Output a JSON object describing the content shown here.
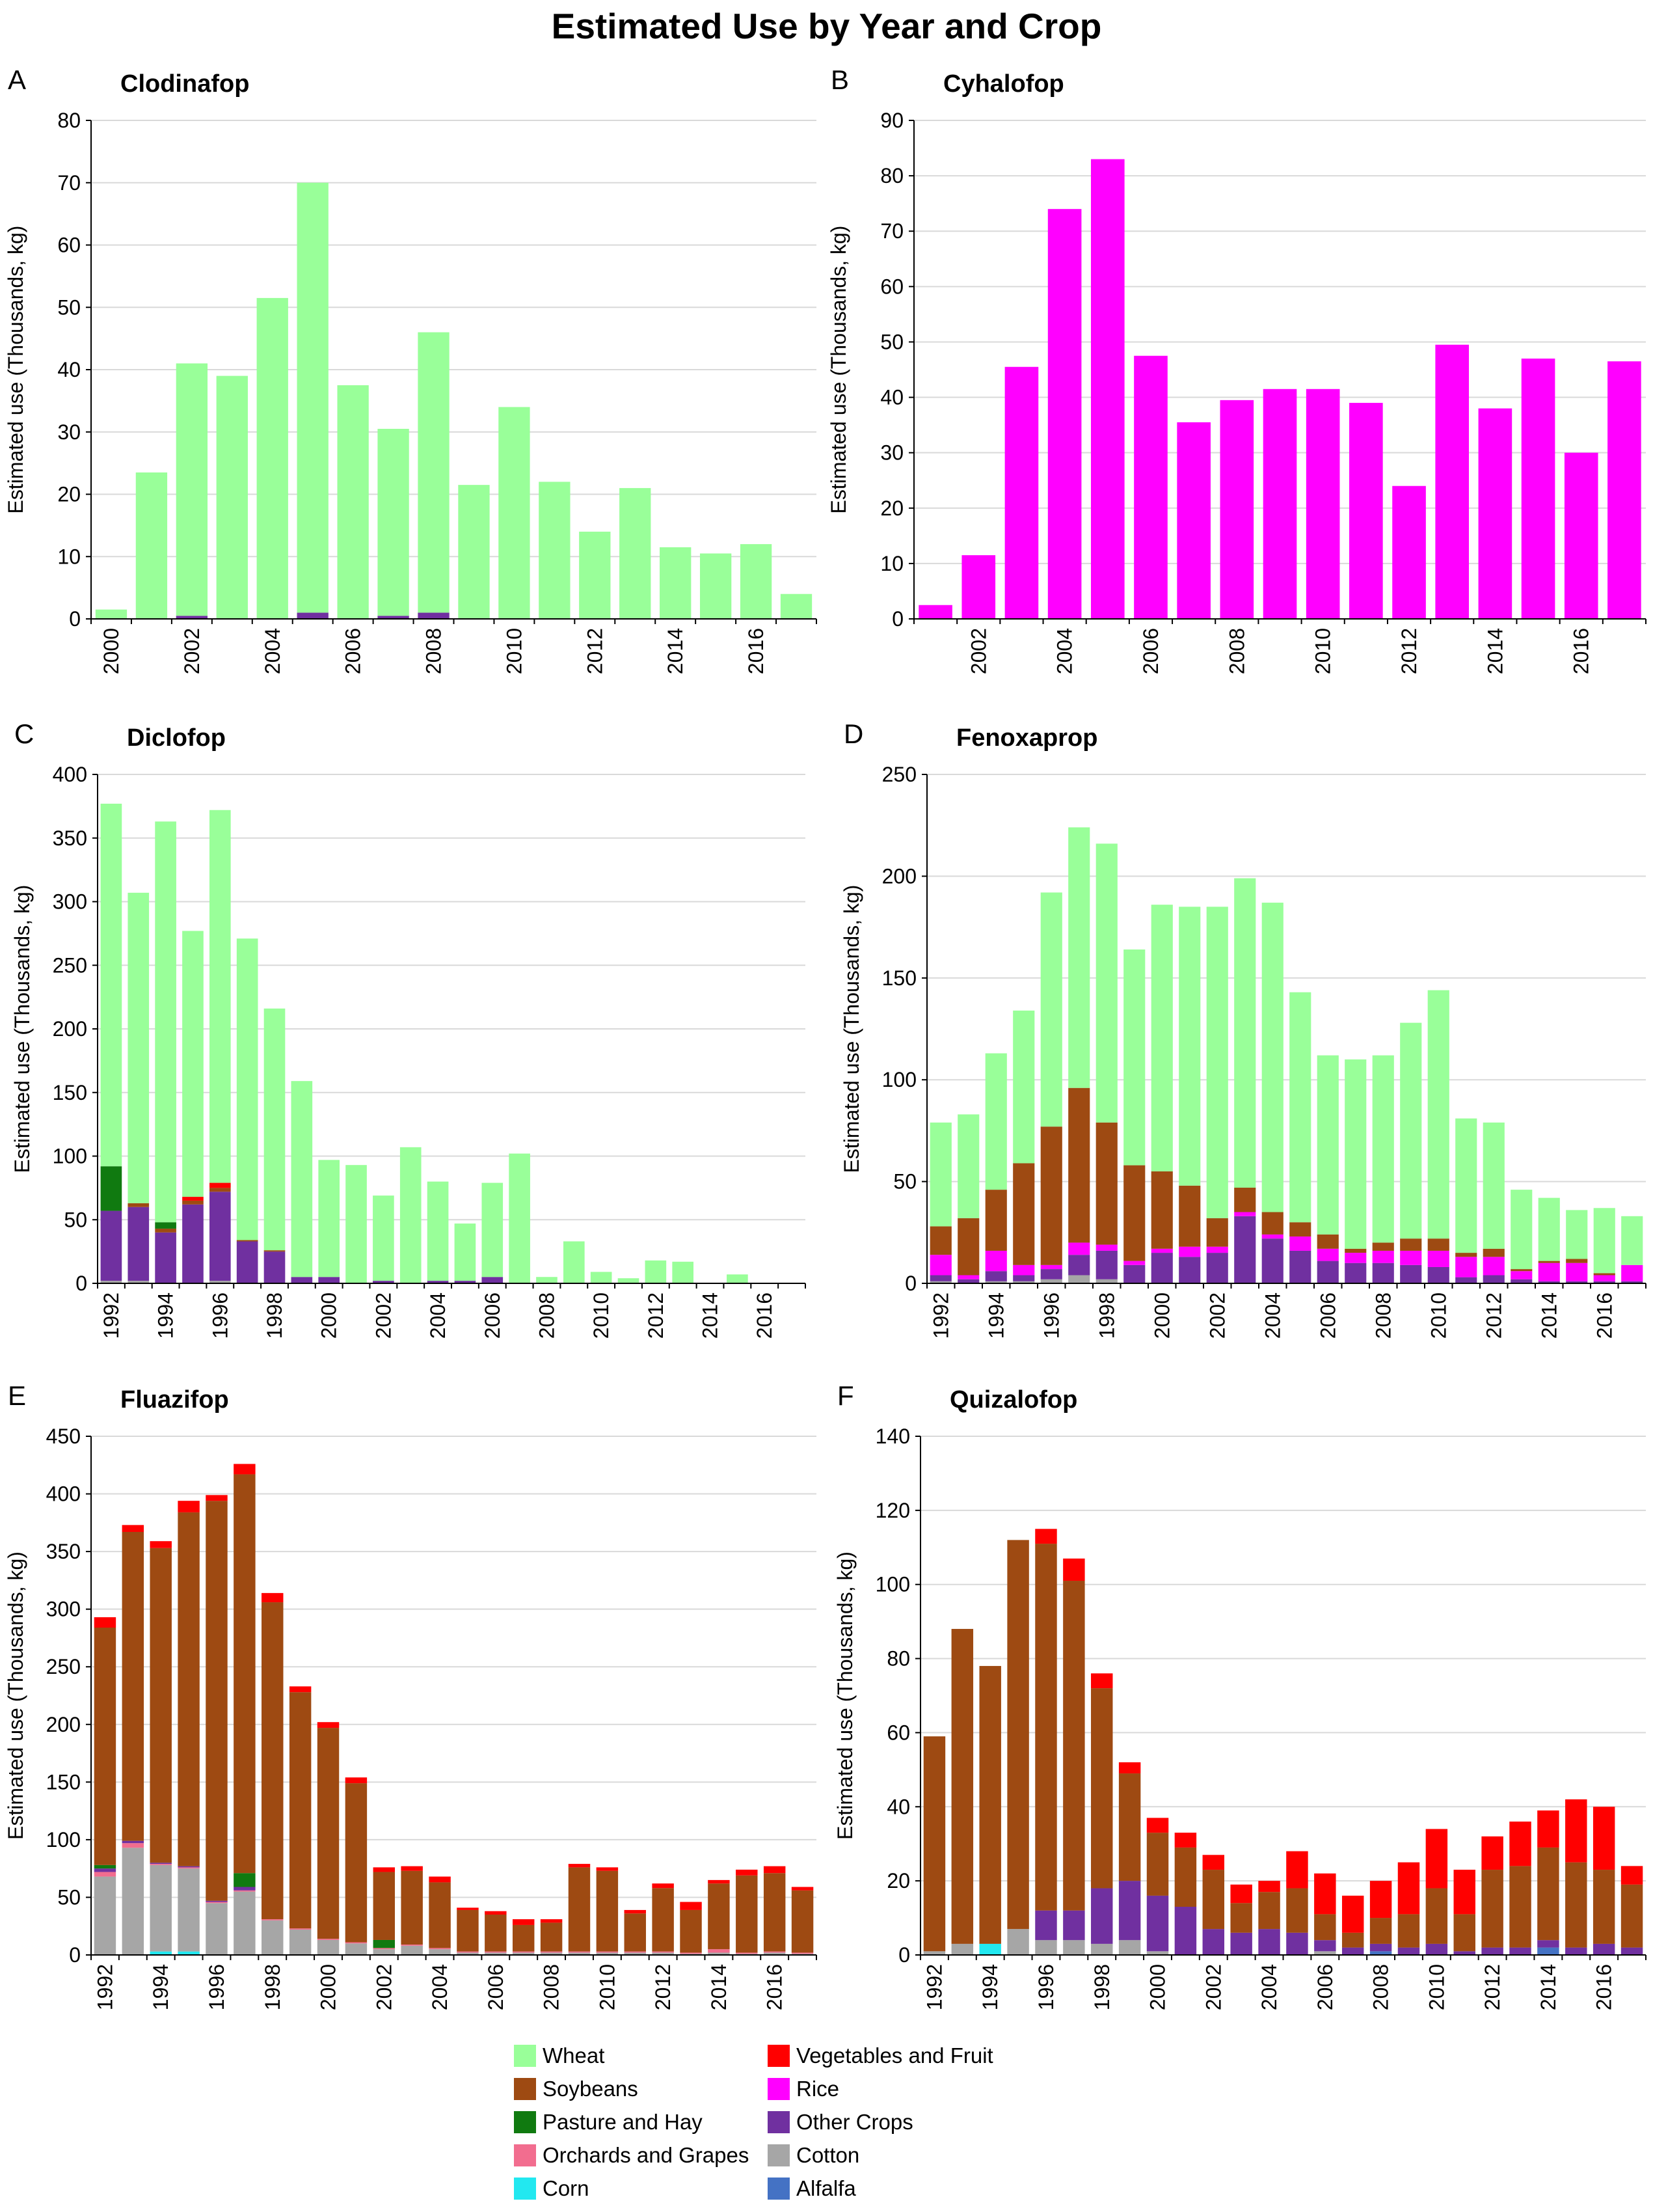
{
  "title": "Estimated Use by Year and Crop",
  "colors": {
    "wheat": "#99FF99",
    "soybeans": "#9E4A12",
    "pasture": "#107A10",
    "orchards": "#F26D8F",
    "corn": "#22E8F0",
    "veg": "#FF0000",
    "rice": "#FF00FF",
    "other": "#7030A0",
    "cotton": "#A6A6A6",
    "alfalfa": "#4472C4"
  },
  "legend": [
    {
      "key": "wheat",
      "label": "Wheat"
    },
    {
      "key": "soybeans",
      "label": "Soybeans"
    },
    {
      "key": "pasture",
      "label": "Pasture and Hay"
    },
    {
      "key": "orchards",
      "label": "Orchards and Grapes"
    },
    {
      "key": "corn",
      "label": "Corn"
    },
    {
      "key": "veg",
      "label": "Vegetables and Fruit"
    },
    {
      "key": "rice",
      "label": "Rice"
    },
    {
      "key": "other",
      "label": "Other Crops"
    },
    {
      "key": "cotton",
      "label": "Cotton"
    },
    {
      "key": "alfalfa",
      "label": "Alfalfa"
    }
  ],
  "chart_data": [
    {
      "panel": "A",
      "title": "Clodinafop",
      "type": "bar",
      "stacked": true,
      "ylabel": "Estimated use (Thousands, kg)",
      "ylim": [
        0,
        80
      ],
      "yticks": [
        0,
        10,
        20,
        30,
        40,
        50,
        60,
        70,
        80
      ],
      "x": [
        2000,
        2001,
        2002,
        2003,
        2004,
        2005,
        2006,
        2007,
        2008,
        2009,
        2010,
        2011,
        2012,
        2013,
        2014,
        2015,
        2016,
        2017
      ],
      "xticks": [
        "2000",
        "2002",
        "2004",
        "2006",
        "2008",
        "2010",
        "2012",
        "2014",
        "2016"
      ],
      "series": [
        {
          "key": "other",
          "name": "Other Crops",
          "values": [
            0,
            0,
            0.5,
            0,
            0,
            1,
            0,
            0.5,
            1,
            0,
            0,
            0,
            0,
            0,
            0,
            0,
            0,
            0
          ]
        },
        {
          "key": "wheat",
          "name": "Wheat",
          "values": [
            1.5,
            23.5,
            40.5,
            39,
            51.5,
            69,
            37.5,
            30,
            45,
            21.5,
            34,
            22,
            14,
            21,
            11.5,
            10.5,
            12,
            4
          ]
        }
      ]
    },
    {
      "panel": "B",
      "title": "Cyhalofop",
      "type": "bar",
      "stacked": true,
      "ylabel": "Estimated use (Thousands, kg)",
      "ylim": [
        0,
        90
      ],
      "yticks": [
        0,
        10,
        20,
        30,
        40,
        50,
        60,
        70,
        80,
        90
      ],
      "x": [
        2001,
        2002,
        2003,
        2004,
        2005,
        2006,
        2007,
        2008,
        2009,
        2010,
        2011,
        2012,
        2013,
        2014,
        2015,
        2016,
        2017
      ],
      "xticks": [
        "2002",
        "2004",
        "2006",
        "2008",
        "2010",
        "2012",
        "2014",
        "2016"
      ],
      "series": [
        {
          "key": "rice",
          "name": "Rice",
          "values": [
            2.5,
            11.5,
            45.5,
            74,
            83,
            47.5,
            35.5,
            39.5,
            41.5,
            41.5,
            39,
            24,
            49.5,
            38,
            47,
            30,
            46.5
          ]
        }
      ]
    },
    {
      "panel": "C",
      "title": "Diclofop",
      "type": "bar",
      "stacked": true,
      "ylabel": "Estimated use (Thousands, kg)",
      "ylim": [
        0,
        400
      ],
      "yticks": [
        0,
        50,
        100,
        150,
        200,
        250,
        300,
        350,
        400
      ],
      "x": [
        1992,
        1993,
        1994,
        1995,
        1996,
        1997,
        1998,
        1999,
        2000,
        2001,
        2002,
        2003,
        2004,
        2005,
        2006,
        2007,
        2008,
        2009,
        2010,
        2011,
        2012,
        2013,
        2014,
        2015,
        2016,
        2017
      ],
      "xticks": [
        "1992",
        "1994",
        "1996",
        "1998",
        "2000",
        "2002",
        "2004",
        "2006",
        "2008",
        "2010",
        "2012",
        "2014",
        "2016"
      ],
      "series": [
        {
          "key": "cotton",
          "name": "Cotton",
          "values": [
            2,
            2,
            0,
            0,
            2,
            0,
            0,
            0,
            0,
            0,
            0,
            0,
            0,
            0,
            0,
            0,
            0,
            0,
            0,
            0,
            0,
            0,
            0,
            0,
            0,
            0
          ]
        },
        {
          "key": "other",
          "name": "Other Crops",
          "values": [
            55,
            58,
            40,
            62,
            70,
            33,
            25,
            5,
            5,
            0,
            2,
            0,
            2,
            2,
            5,
            0,
            0,
            0,
            0,
            0,
            0,
            0,
            0,
            0,
            0,
            0
          ]
        },
        {
          "key": "soybeans",
          "name": "Soybeans",
          "values": [
            0,
            3,
            3,
            3,
            3,
            1,
            1,
            0,
            0,
            0,
            0,
            0,
            0,
            0,
            0,
            0,
            0,
            0,
            0,
            0,
            0,
            0,
            0,
            0,
            0,
            0
          ]
        },
        {
          "key": "pasture",
          "name": "Pasture and Hay",
          "values": [
            35,
            0,
            5,
            0,
            0,
            0,
            0,
            0,
            0,
            0,
            0,
            0,
            0,
            0,
            0,
            0,
            0,
            0,
            0,
            0,
            0,
            0,
            0,
            0,
            0,
            0
          ]
        },
        {
          "key": "veg",
          "name": "Vegetables and Fruit",
          "values": [
            0,
            0,
            0,
            3,
            4,
            0,
            0,
            0,
            0,
            0,
            0,
            0,
            0,
            0,
            0,
            0,
            0,
            0,
            0,
            0,
            0,
            0,
            0,
            0,
            0,
            0
          ]
        },
        {
          "key": "wheat",
          "name": "Wheat",
          "values": [
            285,
            244,
            315,
            209,
            293,
            237,
            190,
            154,
            92,
            93,
            67,
            107,
            78,
            45,
            74,
            102,
            5,
            33,
            9,
            4,
            18,
            17,
            0,
            7,
            0,
            0
          ]
        }
      ]
    },
    {
      "panel": "D",
      "title": "Fenoxaprop",
      "type": "bar",
      "stacked": true,
      "ylabel": "Estimated use (Thousands, kg)",
      "ylim": [
        0,
        250
      ],
      "yticks": [
        0,
        50,
        100,
        150,
        200,
        250
      ],
      "x": [
        1992,
        1993,
        1994,
        1995,
        1996,
        1997,
        1998,
        1999,
        2000,
        2001,
        2002,
        2003,
        2004,
        2005,
        2006,
        2007,
        2008,
        2009,
        2010,
        2011,
        2012,
        2013,
        2014,
        2015,
        2016,
        2017
      ],
      "xticks": [
        "1992",
        "1994",
        "1996",
        "1998",
        "2000",
        "2002",
        "2004",
        "2006",
        "2008",
        "2010",
        "2012",
        "2014",
        "2016"
      ],
      "series": [
        {
          "key": "cotton",
          "name": "Cotton",
          "values": [
            1,
            0,
            1,
            1,
            2,
            4,
            2,
            0,
            0,
            0,
            0,
            0,
            0,
            0,
            0,
            0,
            0,
            0,
            0,
            0,
            0,
            0,
            0,
            0,
            0,
            0
          ]
        },
        {
          "key": "other",
          "name": "Other Crops",
          "values": [
            3,
            2,
            5,
            3,
            5,
            10,
            14,
            9,
            15,
            13,
            15,
            33,
            22,
            16,
            11,
            10,
            10,
            9,
            8,
            3,
            4,
            2,
            1,
            1,
            1,
            1
          ]
        },
        {
          "key": "rice",
          "name": "Rice",
          "values": [
            10,
            2,
            10,
            5,
            2,
            6,
            3,
            2,
            2,
            5,
            3,
            2,
            2,
            7,
            6,
            5,
            6,
            7,
            8,
            10,
            9,
            4,
            9,
            9,
            3,
            8
          ]
        },
        {
          "key": "soybeans",
          "name": "Soybeans",
          "values": [
            14,
            28,
            30,
            50,
            68,
            76,
            60,
            47,
            38,
            30,
            14,
            12,
            11,
            7,
            7,
            2,
            4,
            6,
            6,
            2,
            4,
            1,
            1,
            2,
            1,
            0
          ]
        },
        {
          "key": "wheat",
          "name": "Wheat",
          "values": [
            51,
            51,
            67,
            75,
            115,
            128,
            137,
            106,
            131,
            137,
            153,
            152,
            152,
            113,
            88,
            93,
            92,
            106,
            122,
            66,
            62,
            39,
            31,
            24,
            32,
            24
          ]
        }
      ]
    },
    {
      "panel": "E",
      "title": "Fluazifop",
      "type": "bar",
      "stacked": true,
      "ylabel": "Estimated use (Thousands, kg)",
      "ylim": [
        0,
        450
      ],
      "yticks": [
        0,
        50,
        100,
        150,
        200,
        250,
        300,
        350,
        400,
        450
      ],
      "x": [
        1992,
        1993,
        1994,
        1995,
        1996,
        1997,
        1998,
        1999,
        2000,
        2001,
        2002,
        2003,
        2004,
        2005,
        2006,
        2007,
        2008,
        2009,
        2010,
        2011,
        2012,
        2013,
        2014,
        2015,
        2016,
        2017
      ],
      "xticks": [
        "1992",
        "1994",
        "1996",
        "1998",
        "2000",
        "2002",
        "2004",
        "2006",
        "2008",
        "2010",
        "2012",
        "2014",
        "2016"
      ],
      "series": [
        {
          "key": "corn",
          "name": "Corn",
          "values": [
            0,
            0,
            3,
            3,
            0,
            0,
            0,
            0,
            0,
            0,
            0,
            0,
            0,
            0,
            0,
            0,
            0,
            0,
            0,
            0,
            0,
            0,
            0,
            0,
            0,
            0
          ]
        },
        {
          "key": "cotton",
          "name": "Cotton",
          "values": [
            68,
            93,
            75,
            72,
            45,
            55,
            30,
            22,
            13,
            10,
            5,
            8,
            5,
            2,
            2,
            2,
            2,
            2,
            2,
            2,
            2,
            1,
            2,
            1,
            2,
            1
          ]
        },
        {
          "key": "orchards",
          "name": "Orchards and Grapes",
          "values": [
            4,
            4,
            1,
            1,
            1,
            1,
            1,
            1,
            1,
            1,
            1,
            1,
            1,
            1,
            1,
            1,
            1,
            1,
            1,
            1,
            1,
            1,
            3,
            1,
            1,
            1
          ]
        },
        {
          "key": "other",
          "name": "Other Crops",
          "values": [
            3,
            2,
            1,
            1,
            1,
            3,
            0,
            0,
            0,
            0,
            0,
            0,
            0,
            0,
            0,
            0,
            0,
            0,
            0,
            0,
            0,
            0,
            0,
            0,
            0,
            0
          ]
        },
        {
          "key": "pasture",
          "name": "Pasture and Hay",
          "values": [
            3,
            0,
            0,
            0,
            0,
            12,
            0,
            0,
            0,
            0,
            7,
            0,
            0,
            0,
            0,
            0,
            0,
            0,
            0,
            0,
            0,
            0,
            0,
            0,
            0,
            0
          ]
        },
        {
          "key": "soybeans",
          "name": "Soybeans",
          "values": [
            206,
            268,
            273,
            307,
            347,
            346,
            275,
            205,
            183,
            138,
            59,
            64,
            57,
            36,
            32,
            23,
            25,
            73,
            70,
            33,
            55,
            37,
            57,
            67,
            68,
            54
          ]
        },
        {
          "key": "veg",
          "name": "Vegetables and Fruit",
          "values": [
            9,
            6,
            6,
            10,
            5,
            9,
            8,
            5,
            5,
            5,
            4,
            4,
            5,
            2,
            3,
            5,
            3,
            3,
            3,
            3,
            4,
            7,
            3,
            5,
            6,
            3
          ]
        }
      ]
    },
    {
      "panel": "F",
      "title": "Quizalofop",
      "type": "bar",
      "stacked": true,
      "ylabel": "Estimated use (Thousands, kg)",
      "ylim": [
        0,
        140
      ],
      "yticks": [
        0,
        20,
        40,
        60,
        80,
        100,
        120,
        140
      ],
      "x": [
        1992,
        1993,
        1994,
        1995,
        1996,
        1997,
        1998,
        1999,
        2000,
        2001,
        2002,
        2003,
        2004,
        2005,
        2006,
        2007,
        2008,
        2009,
        2010,
        2011,
        2012,
        2013,
        2014,
        2015,
        2016,
        2017
      ],
      "xticks": [
        "1992",
        "1994",
        "1996",
        "1998",
        "2000",
        "2002",
        "2004",
        "2006",
        "2008",
        "2010",
        "2012",
        "2014",
        "2016"
      ],
      "series": [
        {
          "key": "corn",
          "name": "Corn",
          "values": [
            0,
            0,
            3,
            0,
            0,
            0,
            0,
            0,
            0,
            0,
            0,
            0,
            0,
            0,
            0,
            0,
            0,
            0,
            0,
            0,
            0,
            0,
            0,
            0,
            0,
            0
          ]
        },
        {
          "key": "cotton",
          "name": "Cotton",
          "values": [
            1,
            3,
            0,
            7,
            4,
            4,
            3,
            4,
            1,
            0,
            0,
            0,
            0,
            0,
            1,
            0,
            0,
            0,
            0,
            0,
            0,
            0,
            0,
            0,
            0,
            0
          ]
        },
        {
          "key": "alfalfa",
          "name": "Alfalfa",
          "values": [
            0,
            0,
            0,
            0,
            0,
            0,
            0,
            0,
            0,
            0,
            0,
            0,
            0,
            0,
            0,
            0,
            1,
            0,
            0,
            0,
            0,
            0,
            2,
            0,
            0,
            0
          ]
        },
        {
          "key": "other",
          "name": "Other Crops",
          "values": [
            0,
            0,
            0,
            0,
            8,
            8,
            15,
            16,
            15,
            13,
            7,
            6,
            7,
            6,
            3,
            2,
            2,
            2,
            3,
            1,
            2,
            2,
            2,
            2,
            3,
            2
          ]
        },
        {
          "key": "soybeans",
          "name": "Soybeans",
          "values": [
            58,
            85,
            75,
            105,
            99,
            89,
            54,
            29,
            17,
            16,
            16,
            8,
            10,
            12,
            7,
            4,
            7,
            9,
            15,
            10,
            21,
            22,
            25,
            23,
            20,
            17
          ]
        },
        {
          "key": "veg",
          "name": "Vegetables and Fruit",
          "values": [
            0,
            0,
            0,
            0,
            4,
            6,
            4,
            3,
            4,
            4,
            4,
            5,
            3,
            10,
            11,
            10,
            10,
            14,
            16,
            12,
            9,
            12,
            10,
            17,
            17,
            5
          ]
        }
      ]
    }
  ]
}
